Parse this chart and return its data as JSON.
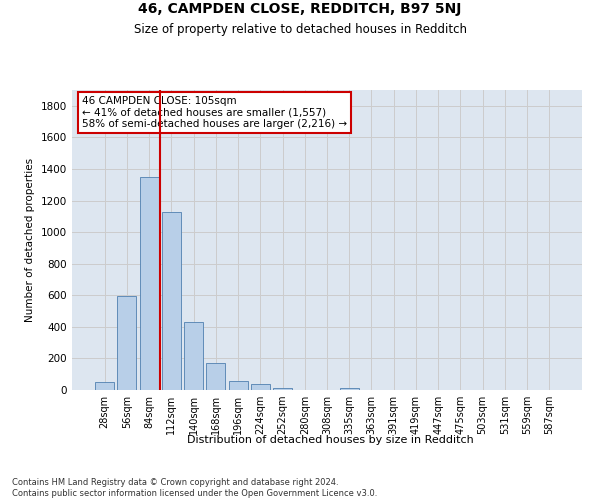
{
  "title1": "46, CAMPDEN CLOSE, REDDITCH, B97 5NJ",
  "title2": "Size of property relative to detached houses in Redditch",
  "xlabel": "Distribution of detached houses by size in Redditch",
  "ylabel": "Number of detached properties",
  "bar_labels": [
    "28sqm",
    "56sqm",
    "84sqm",
    "112sqm",
    "140sqm",
    "168sqm",
    "196sqm",
    "224sqm",
    "252sqm",
    "280sqm",
    "308sqm",
    "335sqm",
    "363sqm",
    "391sqm",
    "419sqm",
    "447sqm",
    "475sqm",
    "503sqm",
    "531sqm",
    "559sqm",
    "587sqm"
  ],
  "bar_values": [
    50,
    597,
    1349,
    1128,
    430,
    170,
    60,
    35,
    15,
    0,
    0,
    15,
    0,
    0,
    0,
    0,
    0,
    0,
    0,
    0,
    0
  ],
  "bar_color": "#b8cfe8",
  "bar_edge_color": "#5080b0",
  "red_line_color": "#cc0000",
  "annotation_text": "46 CAMPDEN CLOSE: 105sqm\n← 41% of detached houses are smaller (1,557)\n58% of semi-detached houses are larger (2,216) →",
  "annotation_box_color": "#ffffff",
  "annotation_box_edge": "#cc0000",
  "ylim": [
    0,
    1900
  ],
  "yticks": [
    0,
    200,
    400,
    600,
    800,
    1000,
    1200,
    1400,
    1600,
    1800
  ],
  "grid_color": "#cccccc",
  "bg_color": "#dde6f0",
  "footnote": "Contains HM Land Registry data © Crown copyright and database right 2024.\nContains public sector information licensed under the Open Government Licence v3.0."
}
